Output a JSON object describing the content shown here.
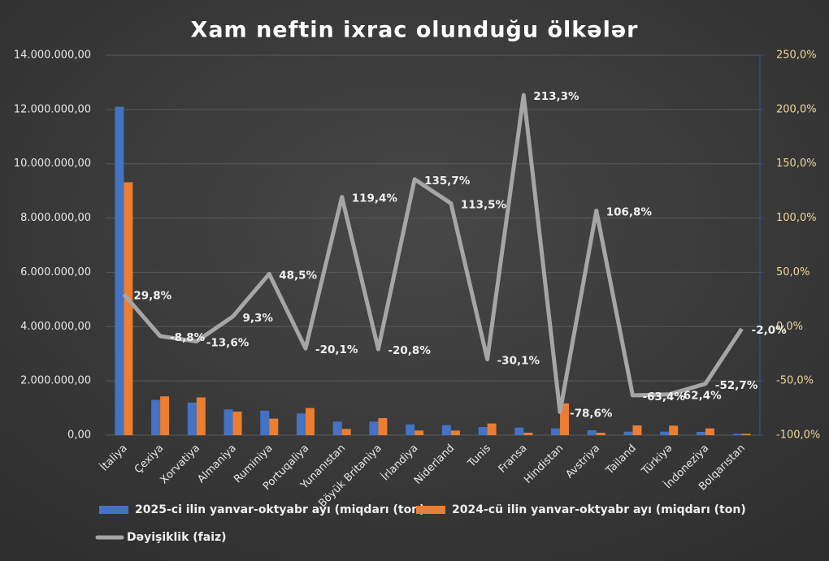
{
  "chart_data": {
    "type": "bar-line",
    "title": "Xam neftin ixrac olunduğu ölkələr",
    "categories": [
      "İtaliya",
      "Çexiya",
      "Xorvatiya",
      "Almaniya",
      "Ruminiya",
      "Portuqaliya",
      "Yunanıstan",
      "Böyük Britaniya",
      "İrlandiya",
      "Niderland",
      "Tunis",
      "Fransa",
      "Hindistan",
      "Avstriya",
      "Tailand",
      "Türkiyə",
      "İndoneziya",
      "Bolqarıstan"
    ],
    "series": [
      {
        "name": "2025-ci ilin yanvar-oktyabr ayı (miqdarı (ton)",
        "color": "#4472c4",
        "type": "bar",
        "values": [
          12100000,
          1300000,
          1200000,
          950000,
          900000,
          800000,
          500000,
          500000,
          400000,
          370000,
          300000,
          280000,
          250000,
          180000,
          130000,
          130000,
          120000,
          50000
        ]
      },
      {
        "name": "2024-cü ilin yanvar-oktyabr ayı (miqdarı (ton)",
        "color": "#ed7d31",
        "type": "bar",
        "values": [
          9320000,
          1430000,
          1390000,
          870000,
          610000,
          1000000,
          230000,
          630000,
          170000,
          170000,
          430000,
          90000,
          1170000,
          90000,
          360000,
          350000,
          250000,
          50000
        ]
      },
      {
        "name": "Dəyişiklik (faiz)",
        "color": "#a6a6a6",
        "type": "line",
        "axis": "y2",
        "values": [
          29.8,
          -8.8,
          -13.6,
          9.3,
          48.5,
          -20.1,
          119.4,
          -20.8,
          135.7,
          113.5,
          -30.1,
          213.3,
          -78.6,
          106.8,
          -63.4,
          -62.4,
          -52.7,
          -2.0
        ],
        "value_labels": [
          "29,8%",
          "-8,8%",
          "-13,6%",
          "9,3%",
          "48,5%",
          "-20,1%",
          "119,4%",
          "-20,8%",
          "135,7%",
          "113,5%",
          "-30,1%",
          "213,3%",
          "-78,6%",
          "106,8%",
          "-63,4%",
          "-62,4%",
          "-52,7%",
          "-2,0%"
        ]
      }
    ],
    "ylim": [
      0,
      14000000
    ],
    "yticks": [
      {
        "value": 0,
        "label": "0,00"
      },
      {
        "value": 2000000,
        "label": "2.000.000,00"
      },
      {
        "value": 4000000,
        "label": "4.000.000,00"
      },
      {
        "value": 6000000,
        "label": "6.000.000,00"
      },
      {
        "value": 8000000,
        "label": "8.000.000,00"
      },
      {
        "value": 10000000,
        "label": "10.000.000,00"
      },
      {
        "value": 12000000,
        "label": "12.000.000,00"
      },
      {
        "value": 14000000,
        "label": "14.000.000,00"
      }
    ],
    "y2lim": [
      -100,
      250
    ],
    "y2ticks": [
      {
        "value": -100,
        "label": "-100,0%"
      },
      {
        "value": -50,
        "label": "-50,0%"
      },
      {
        "value": 0,
        "label": "0,0%"
      },
      {
        "value": 50,
        "label": "50,0%"
      },
      {
        "value": 100,
        "label": "100,0%"
      },
      {
        "value": 150,
        "label": "150,0%"
      },
      {
        "value": 200,
        "label": "200,0%"
      },
      {
        "value": 250,
        "label": "250,0%"
      }
    ],
    "grid": true
  }
}
